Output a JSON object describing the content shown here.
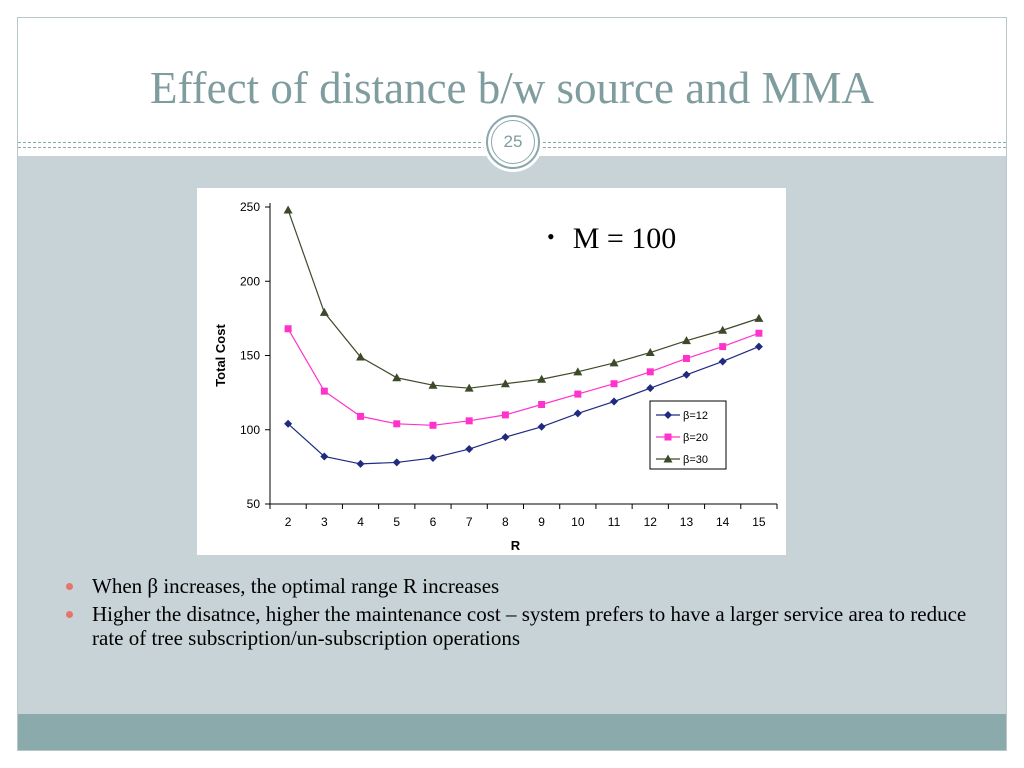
{
  "slide": {
    "title": "Effect of distance b/w source and MMA",
    "number": "25",
    "annotation": "M = 100",
    "bullets": [
      "When β increases, the optimal range R increases",
      "Higher the disatnce, higher the maintenance cost – system prefers to have a larger service area to reduce rate of tree subscription/un-subscription operations"
    ],
    "colors": {
      "title": "#7f9c9e",
      "content_bg": "#c7d3d7",
      "footer_band": "#8aaaab",
      "bullet_marker": "#e57566"
    }
  },
  "chart_data": {
    "type": "line",
    "title": "",
    "xlabel": "R",
    "ylabel": "Total Cost",
    "x": [
      2,
      3,
      4,
      5,
      6,
      7,
      8,
      9,
      10,
      11,
      12,
      13,
      14,
      15
    ],
    "ylim": [
      50,
      250
    ],
    "yticks": [
      50,
      100,
      150,
      200,
      250
    ],
    "legend_position": "right",
    "grid": false,
    "series": [
      {
        "name": "β=12",
        "marker": "diamond",
        "color": "#1f2a80",
        "values": [
          104,
          82,
          77,
          78,
          81,
          87,
          95,
          102,
          111,
          119,
          128,
          137,
          146,
          156
        ]
      },
      {
        "name": "β=20",
        "marker": "square",
        "color": "#ff33cc",
        "values": [
          168,
          126,
          109,
          104,
          103,
          106,
          110,
          117,
          124,
          131,
          139,
          148,
          156,
          165
        ]
      },
      {
        "name": "β=30",
        "marker": "triangle",
        "color": "#3d4a2a",
        "values": [
          248,
          179,
          149,
          135,
          130,
          128,
          131,
          134,
          139,
          145,
          152,
          160,
          167,
          175
        ]
      }
    ]
  }
}
